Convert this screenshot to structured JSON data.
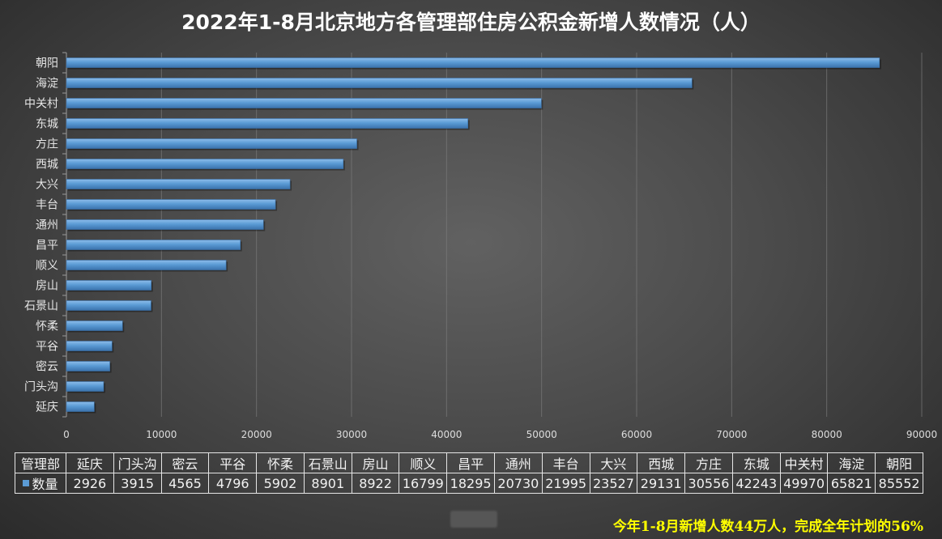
{
  "chart_data": {
    "type": "bar",
    "orientation": "horizontal",
    "title": "2022年1-8月北京地方各管理部住房公积金新增人数情况（人）",
    "categories": [
      "延庆",
      "门头沟",
      "密云",
      "平谷",
      "怀柔",
      "石景山",
      "房山",
      "顺义",
      "昌平",
      "通州",
      "丰台",
      "大兴",
      "西城",
      "方庄",
      "东城",
      "中关村",
      "海淀",
      "朝阳"
    ],
    "series": [
      {
        "name": "数量",
        "values": [
          2926,
          3915,
          4565,
          4796,
          5902,
          8901,
          8922,
          16799,
          18295,
          20730,
          21995,
          23527,
          29131,
          30556,
          42243,
          49970,
          65821,
          85552
        ]
      }
    ],
    "xlim": [
      0,
      90000
    ],
    "x_ticks": [
      0,
      10000,
      20000,
      30000,
      40000,
      50000,
      60000,
      70000,
      80000,
      90000
    ],
    "grid": true,
    "legend": "data-table"
  },
  "table": {
    "header_label": "管理部"
  },
  "note": "今年1-8月新增人数44万人，完成全年计划的56%",
  "colors": {
    "bar": "#5b9bd5",
    "bar_light": "#8dbcea",
    "bar_dark": "#3b73ad",
    "note": "#ffff00"
  }
}
